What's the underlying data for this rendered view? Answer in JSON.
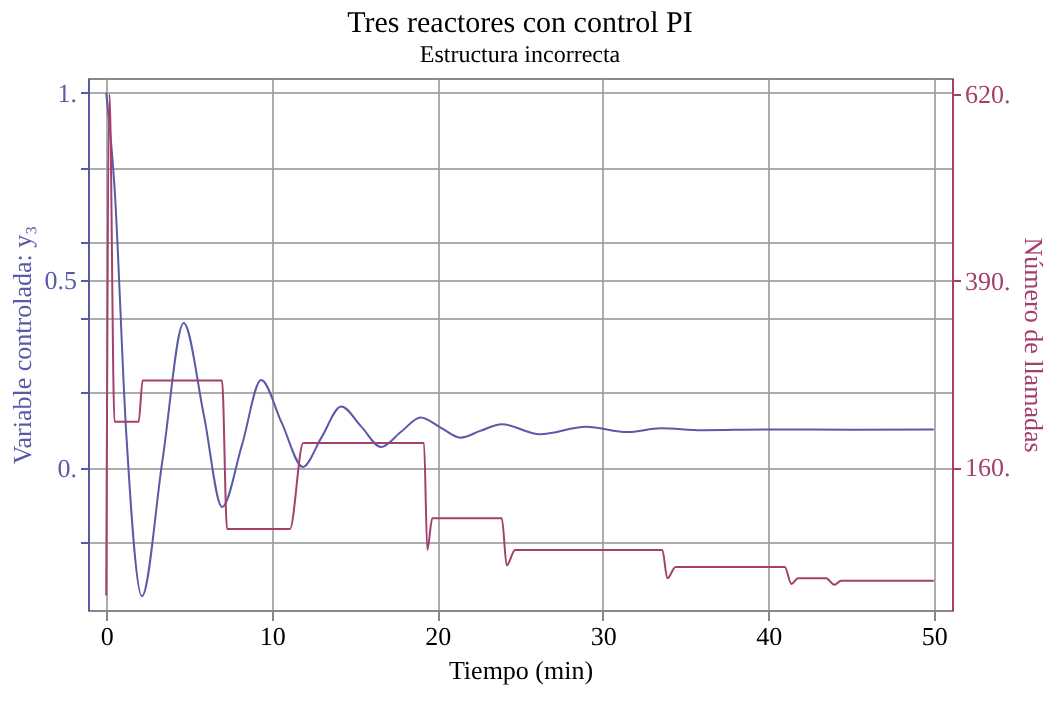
{
  "chart_data": {
    "type": "line",
    "title": "Tres reactores con control PI",
    "subtitle": "Estructura incorrecta",
    "xlabel": "Tiempo (min)",
    "ylabel": "Variable controlada: y₃",
    "y2label": "Número de llamadas",
    "xlim": [
      -1.1,
      51.1
    ],
    "xticks": [
      0,
      10,
      20,
      30,
      40,
      50
    ],
    "ylim": [
      -0.38,
      1.04
    ],
    "yticks": [
      {
        "value": -0.2,
        "label": null
      },
      {
        "value": 0,
        "label": "0."
      },
      {
        "value": 0.2,
        "label": null
      },
      {
        "value": 0.4,
        "label": null
      },
      {
        "value": 0.5,
        "label": "0.5"
      },
      {
        "value": 0.6,
        "label": null
      },
      {
        "value": 0.8,
        "label": null
      },
      {
        "value": 1,
        "label": "1."
      }
    ],
    "y2lim": [
      -16,
      640
    ],
    "y2ticks": [
      {
        "value": 160,
        "label": "160."
      },
      {
        "value": 390,
        "label": "390."
      },
      {
        "value": 620,
        "label": "620."
      }
    ],
    "grid": true,
    "series": [
      {
        "color": "#5a5aa8",
        "axis": "y",
        "x": [
          0,
          0.5,
          1.2,
          2.16,
          3.4,
          4.68,
          5.9,
          7.0,
          8.2,
          9.36,
          10.6,
          11.88,
          13.0,
          14.2,
          15.4,
          16.6,
          17.8,
          19.0,
          20.2,
          21.4,
          22.6,
          23.9,
          26.2,
          29.0,
          31.5,
          33.5,
          36,
          40,
          45,
          50
        ],
        "values": [
          1.0,
          0.75,
          0.1,
          -0.343,
          0.02,
          0.386,
          0.14,
          -0.105,
          0.06,
          0.234,
          0.12,
          0.002,
          0.08,
          0.163,
          0.11,
          0.055,
          0.095,
          0.134,
          0.107,
          0.08,
          0.098,
          0.116,
          0.089,
          0.109,
          0.095,
          0.105,
          0.1,
          0.102,
          0.101,
          0.102
        ]
      },
      {
        "color": "#a3406c",
        "axis": "y2",
        "x": [
          0,
          0.2,
          0.5,
          1.96,
          2.2,
          7.0,
          7.3,
          11.1,
          11.9,
          19.2,
          19.4,
          19.7,
          23.9,
          24.2,
          24.7,
          33.6,
          33.9,
          34.4,
          41.0,
          41.4,
          41.8,
          43.5,
          44.0,
          44.4,
          50
        ],
        "values": [
          2,
          620,
          216,
          216,
          267,
          267,
          84,
          84,
          190,
          190,
          58,
          97,
          97,
          39,
          58,
          58,
          23,
          37,
          37,
          16,
          23,
          23,
          15,
          20,
          20
        ]
      }
    ]
  }
}
